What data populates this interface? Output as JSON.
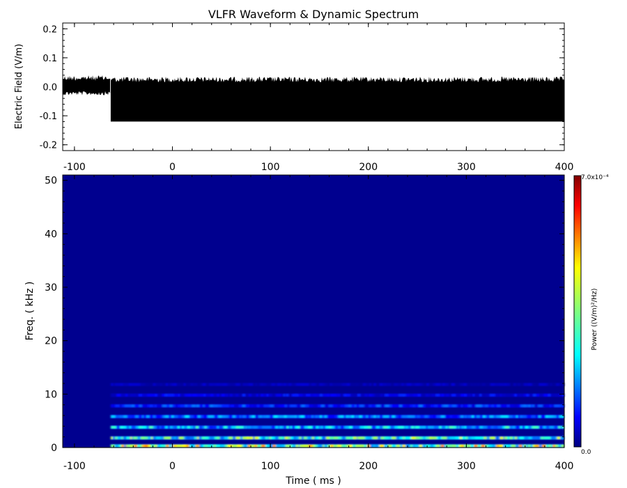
{
  "title": "VLFR Waveform & Dynamic Spectrum",
  "colors": {
    "waveform": "#000000",
    "background": "#ffffff",
    "spectrum_background": "#00008f"
  },
  "chart_data": [
    {
      "type": "area",
      "panel": "waveform",
      "title": "VLFR Waveform & Dynamic Spectrum",
      "xlabel": "",
      "ylabel": "Electric Field  (V/m)",
      "xlim": [
        -112,
        400
      ],
      "ylim": [
        -0.22,
        0.22
      ],
      "x_ticks": [
        -100,
        0,
        100,
        200,
        300,
        400
      ],
      "x_tick_labels": [
        "-100",
        "0",
        "100",
        "200",
        "300",
        "400"
      ],
      "y_ticks": [
        -0.2,
        -0.1,
        0.0,
        0.1,
        0.2
      ],
      "y_tick_labels": [
        "-0.2",
        "-0.1",
        "0.0",
        "0.1",
        "0.2"
      ],
      "segments": [
        {
          "x_start": -112,
          "x_end": -63,
          "min": -0.02,
          "max": 0.035
        },
        {
          "x_start": -63,
          "x_end": 400,
          "min": -0.12,
          "max": 0.03
        }
      ],
      "grid": false
    },
    {
      "type": "heatmap",
      "panel": "dynamic spectrum",
      "xlabel": "Time ( ms )",
      "ylabel": "Freq. ( kHz )",
      "xlim": [
        -112,
        400
      ],
      "ylim": [
        0,
        51
      ],
      "x_ticks": [
        -100,
        0,
        100,
        200,
        300,
        400
      ],
      "x_tick_labels": [
        "-100",
        "0",
        "100",
        "200",
        "300",
        "400"
      ],
      "y_ticks": [
        0,
        10,
        20,
        30,
        40,
        50
      ],
      "y_tick_labels": [
        "0",
        "10",
        "20",
        "30",
        "40",
        "50"
      ],
      "signal_start_ms": -63,
      "bands": [
        {
          "freq_khz": 0.3,
          "power": 0.00032
        },
        {
          "freq_khz": 1.8,
          "power": 0.00026
        },
        {
          "freq_khz": 3.8,
          "power": 0.00018
        },
        {
          "freq_khz": 5.8,
          "power": 0.00013
        },
        {
          "freq_khz": 7.8,
          "power": 9e-05
        },
        {
          "freq_khz": 9.8,
          "power": 6e-05
        },
        {
          "freq_khz": 11.8,
          "power": 3e-05
        }
      ],
      "colorbar": {
        "label": "Power   ((V/m)²/Hz)",
        "min_label": "0.0",
        "max_label": "7.0x10⁻⁴",
        "min": 0,
        "max": 0.0007,
        "colormap": "jet"
      },
      "grid": false
    }
  ]
}
